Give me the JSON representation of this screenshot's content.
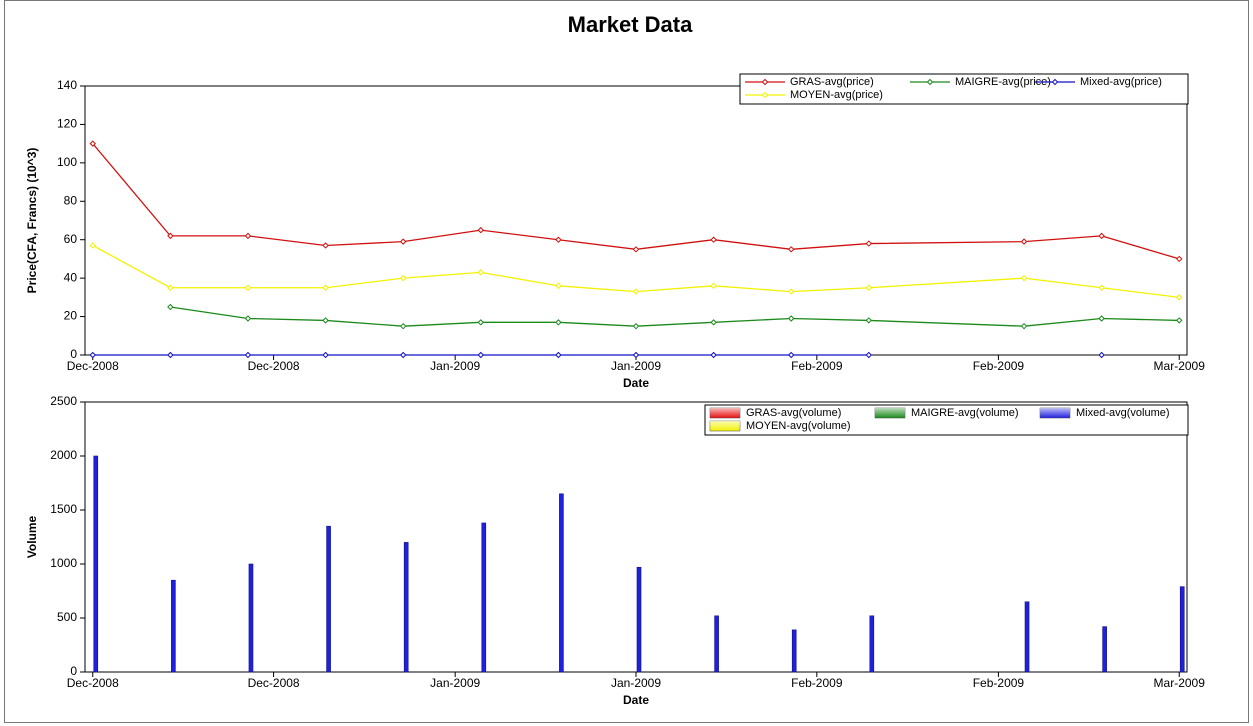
{
  "chart_data": [
    {
      "type": "line",
      "title": "Market Data",
      "x": [
        0,
        1,
        2,
        3,
        4,
        5,
        6,
        7,
        8,
        9,
        10,
        12,
        13,
        14
      ],
      "xlim": [
        -0.1,
        14.1
      ],
      "xticks": [
        {
          "value": 0,
          "label": "Dec-2008"
        },
        {
          "value": 2.33,
          "label": "Dec-2008"
        },
        {
          "value": 4.67,
          "label": "Jan-2009"
        },
        {
          "value": 7,
          "label": "Jan-2009"
        },
        {
          "value": 9.33,
          "label": "Feb-2009"
        },
        {
          "value": 11.67,
          "label": "Feb-2009"
        },
        {
          "value": 14,
          "label": "Mar-2009"
        }
      ],
      "xlabel": "Date",
      "ylabel": "Price(CFA, Francs) (10^3)",
      "ylim": [
        0,
        140
      ],
      "yticks": [
        0,
        20,
        40,
        60,
        80,
        100,
        120,
        140
      ],
      "legend": "upper right",
      "grid": false,
      "series": [
        {
          "name": "GRAS-avg(price)",
          "color": "#d01010",
          "values": [
            110,
            62,
            62,
            57,
            59,
            65,
            60,
            55,
            60,
            55,
            58,
            59,
            62,
            50
          ]
        },
        {
          "name": "MAIGRE-avg(price)",
          "color": "#1a8a1a",
          "values": [
            null,
            25,
            19,
            18,
            15,
            17,
            17,
            15,
            17,
            19,
            18,
            15,
            19,
            18
          ]
        },
        {
          "name": "Mixed-avg(price)",
          "color": "#1010c8",
          "values": [
            0,
            0,
            0,
            0,
            0,
            0,
            0,
            0,
            0,
            0,
            0,
            null,
            0,
            null
          ]
        },
        {
          "name": "MOYEN-avg(price)",
          "color": "#f2f200",
          "values": [
            57,
            35,
            35,
            35,
            40,
            43,
            36,
            33,
            36,
            33,
            35,
            40,
            35,
            30
          ]
        }
      ]
    },
    {
      "type": "bar",
      "x": [
        0,
        1,
        2,
        3,
        4,
        5,
        6,
        7,
        8,
        9,
        10,
        12,
        13,
        14
      ],
      "xlim": [
        -0.1,
        14.1
      ],
      "xticks": [
        {
          "value": 0,
          "label": "Dec-2008"
        },
        {
          "value": 2.33,
          "label": "Dec-2008"
        },
        {
          "value": 4.67,
          "label": "Jan-2009"
        },
        {
          "value": 7,
          "label": "Jan-2009"
        },
        {
          "value": 9.33,
          "label": "Feb-2009"
        },
        {
          "value": 11.67,
          "label": "Feb-2009"
        },
        {
          "value": 14,
          "label": "Mar-2009"
        }
      ],
      "xlabel": "Date",
      "ylabel": "Volume",
      "ylim": [
        0,
        2500
      ],
      "yticks": [
        0,
        500,
        1000,
        1500,
        2000,
        2500
      ],
      "legend": "upper right",
      "grid": false,
      "series": [
        {
          "name": "GRAS-avg(volume)",
          "color": "#e81010",
          "values": [
            null,
            null,
            null,
            null,
            null,
            null,
            null,
            null,
            null,
            null,
            null,
            null,
            null,
            null
          ]
        },
        {
          "name": "MAIGRE-avg(volume)",
          "color": "#1a8a1a",
          "values": [
            null,
            null,
            null,
            null,
            null,
            null,
            null,
            null,
            null,
            null,
            null,
            null,
            null,
            null
          ]
        },
        {
          "name": "Mixed-avg(volume)",
          "color": "#2020e0",
          "values": [
            2000,
            850,
            1000,
            1350,
            1200,
            1380,
            1650,
            970,
            520,
            390,
            520,
            650,
            420,
            790
          ]
        },
        {
          "name": "MOYEN-avg(volume)",
          "color": "#f2f200",
          "values": [
            null,
            null,
            null,
            null,
            null,
            null,
            null,
            null,
            null,
            null,
            null,
            null,
            null,
            null
          ]
        }
      ]
    }
  ]
}
